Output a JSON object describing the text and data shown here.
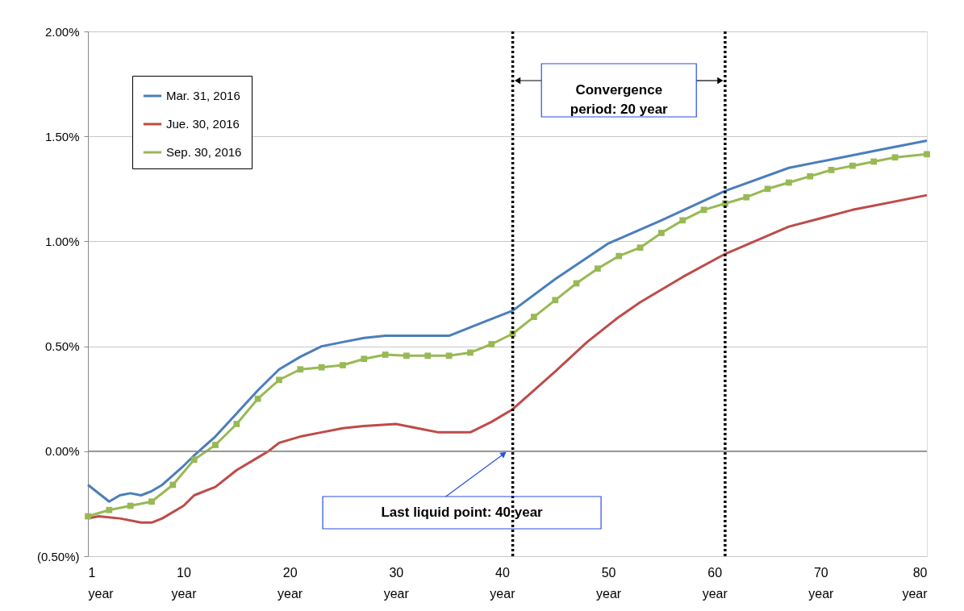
{
  "chart_data": {
    "type": "line",
    "xlim": [
      1,
      80
    ],
    "ylim": [
      -0.5,
      2.0
    ],
    "xticks": [
      {
        "value": 1,
        "label": "1 year"
      },
      {
        "value": 10,
        "label": "10 year"
      },
      {
        "value": 20,
        "label": "20 year"
      },
      {
        "value": 30,
        "label": "30 year"
      },
      {
        "value": 40,
        "label": "40 year"
      },
      {
        "value": 50,
        "label": "50 year"
      },
      {
        "value": 60,
        "label": "60 year"
      },
      {
        "value": 70,
        "label": "70 year"
      },
      {
        "value": 80,
        "label": "80 year"
      }
    ],
    "yticks": [
      {
        "value": -0.5,
        "label": "(0.50%)"
      },
      {
        "value": 0,
        "label": "0.00%"
      },
      {
        "value": 0.5,
        "label": "0.50%"
      },
      {
        "value": 1.0,
        "label": "1.00%"
      },
      {
        "value": 1.5,
        "label": "1.50%"
      },
      {
        "value": 2.0,
        "label": "2.00%"
      }
    ],
    "grid": "y",
    "legend": "top left",
    "line_style": "solid",
    "series": [
      {
        "name": "Mar. 31, 2016",
        "color": "#4a7ebb",
        "marker": "none",
        "x": [
          1,
          3,
          4,
          5,
          6,
          7,
          8,
          10,
          11,
          13,
          15,
          17,
          19,
          21,
          23,
          25,
          27,
          29,
          32,
          35,
          38,
          41,
          45,
          50,
          55,
          61,
          67,
          72,
          76,
          80
        ],
        "values": [
          -0.16,
          -0.24,
          -0.21,
          -0.2,
          -0.21,
          -0.19,
          -0.16,
          -0.07,
          -0.02,
          0.07,
          0.18,
          0.29,
          0.39,
          0.45,
          0.5,
          0.52,
          0.54,
          0.55,
          0.55,
          0.55,
          0.61,
          0.67,
          0.82,
          0.99,
          1.1,
          1.24,
          1.35,
          1.4,
          1.44,
          1.48
        ]
      },
      {
        "name": "Jue. 30, 2016",
        "color": "#be4b48",
        "marker": "none",
        "x": [
          1,
          2,
          4,
          6,
          7,
          8,
          10,
          11,
          13,
          15,
          17,
          18,
          19,
          21,
          23,
          25,
          27,
          30,
          34,
          37,
          39,
          41,
          45,
          48,
          51,
          53,
          57,
          61,
          67,
          73,
          80
        ],
        "values": [
          -0.32,
          -0.31,
          -0.32,
          -0.34,
          -0.34,
          -0.32,
          -0.26,
          -0.21,
          -0.17,
          -0.09,
          -0.03,
          0.0,
          0.04,
          0.07,
          0.09,
          0.11,
          0.12,
          0.13,
          0.09,
          0.09,
          0.14,
          0.2,
          0.38,
          0.52,
          0.64,
          0.71,
          0.83,
          0.94,
          1.07,
          1.15,
          1.22
        ]
      },
      {
        "name": "Sep. 30, 2016",
        "color": "#98b954",
        "marker": "square",
        "x": [
          1,
          3,
          5,
          7,
          9,
          11,
          13,
          15,
          17,
          19,
          21,
          23,
          25,
          27,
          29,
          31,
          33,
          35,
          37,
          39,
          41,
          43,
          45,
          47,
          49,
          51,
          53,
          55,
          57,
          59,
          61,
          63,
          65,
          67,
          69,
          71,
          73,
          75,
          77,
          80
        ],
        "values": [
          -0.31,
          -0.28,
          -0.26,
          -0.24,
          -0.16,
          -0.04,
          0.03,
          0.13,
          0.25,
          0.34,
          0.39,
          0.4,
          0.41,
          0.44,
          0.46,
          0.455,
          0.455,
          0.455,
          0.47,
          0.51,
          0.56,
          0.64,
          0.72,
          0.8,
          0.87,
          0.93,
          0.97,
          1.04,
          1.1,
          1.15,
          1.18,
          1.21,
          1.25,
          1.28,
          1.31,
          1.34,
          1.36,
          1.38,
          1.4,
          1.415
        ]
      }
    ],
    "ref_lines": [
      {
        "axis": "x",
        "value": 41,
        "color": "#000000",
        "line_style": "dotted"
      },
      {
        "axis": "x",
        "value": 61,
        "color": "#000000",
        "line_style": "dotted"
      }
    ],
    "annotations": [
      "Convergence period: 20 year",
      "Last liquid point: 40 year"
    ]
  }
}
